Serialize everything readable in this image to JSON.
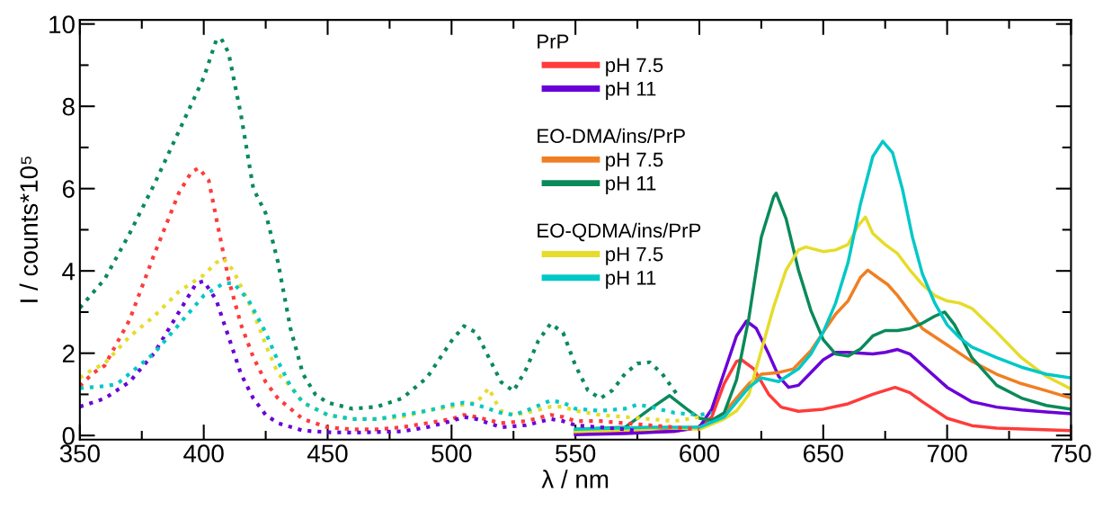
{
  "chart_data": {
    "type": "line",
    "xlabel": "λ / nm",
    "ylabel": "I / counts*10⁵",
    "xlim": [
      350,
      750
    ],
    "ylim": [
      -0.1,
      10.1
    ],
    "xticks": [
      350,
      {
        "value": 375,
        "label": null
      },
      400,
      {
        "value": 425,
        "label": null
      },
      450,
      {
        "value": 475,
        "label": null
      },
      500,
      {
        "value": 525,
        "label": null
      },
      550,
      {
        "value": 575,
        "label": null
      },
      600,
      {
        "value": 625,
        "label": null
      },
      650,
      {
        "value": 675,
        "label": null
      },
      700,
      {
        "value": 725,
        "label": null
      },
      750
    ],
    "yticks": [
      0,
      {
        "value": 1,
        "label": null
      },
      2,
      {
        "value": 3,
        "label": null
      },
      4,
      {
        "value": 5,
        "label": null
      },
      6,
      {
        "value": 7,
        "label": null
      },
      8,
      {
        "value": 9,
        "label": null
      },
      10
    ],
    "grid": false,
    "legend": "top",
    "marker": "none",
    "annotations": [
      "PrP",
      "EO-DMA/ins/PrP",
      "EO-QDMA/ins/PrP"
    ],
    "series": [
      {
        "name": "pH 7.5",
        "color": "#ff3b3b",
        "line_style": "solid",
        "x": [
          550,
          590,
          600,
          605,
          610,
          615,
          617,
          622,
          628,
          633,
          640,
          650,
          660,
          670,
          679,
          685,
          690,
          700,
          710,
          720,
          750
        ],
        "values": [
          0.05,
          0.1,
          0.2,
          0.45,
          1.26,
          1.8,
          1.84,
          1.62,
          1.0,
          0.69,
          0.59,
          0.64,
          0.77,
          1.0,
          1.17,
          1.04,
          0.82,
          0.42,
          0.24,
          0.18,
          0.12
        ]
      },
      {
        "name": "pH 11",
        "color": "#6a00d8",
        "line_style": "solid",
        "x": [
          550,
          570,
          590,
          600,
          605,
          610,
          615,
          619,
          623,
          628,
          632,
          636,
          640,
          645,
          650,
          655,
          660,
          670,
          675,
          680,
          685,
          690,
          700,
          710,
          720,
          730,
          740,
          750
        ],
        "values": [
          0.02,
          0.05,
          0.1,
          0.2,
          0.64,
          1.53,
          2.42,
          2.78,
          2.6,
          1.98,
          1.44,
          1.17,
          1.22,
          1.53,
          1.84,
          2.02,
          2.02,
          1.98,
          2.02,
          2.09,
          1.98,
          1.71,
          1.17,
          0.82,
          0.69,
          0.62,
          0.57,
          0.53
        ]
      },
      {
        "name": "pH 7.5",
        "color": "#f07f22",
        "line_style": "solid",
        "x": [
          550,
          600,
          605,
          610,
          615,
          620,
          625,
          632,
          638,
          645,
          650,
          655,
          660,
          665,
          668,
          672,
          676,
          680,
          690,
          700,
          710,
          720,
          730,
          740,
          750
        ],
        "values": [
          0.1,
          0.2,
          0.3,
          0.55,
          0.91,
          1.26,
          1.49,
          1.53,
          1.62,
          2.06,
          2.51,
          2.95,
          3.27,
          3.84,
          4.02,
          3.84,
          3.67,
          3.4,
          2.6,
          2.2,
          1.8,
          1.49,
          1.26,
          1.09,
          0.91
        ]
      },
      {
        "name": "pH 11",
        "color": "#0a8a5a",
        "line_style": "solid",
        "x": [
          550,
          570,
          580,
          588,
          595,
          600,
          605,
          610,
          615,
          620,
          625,
          630,
          631,
          635,
          640,
          645,
          650,
          655,
          660,
          665,
          670,
          675,
          680,
          685,
          690,
          695,
          699,
          703,
          710,
          720,
          730,
          740,
          750
        ],
        "values": [
          0.15,
          0.2,
          0.64,
          0.97,
          0.64,
          0.42,
          0.37,
          0.55,
          1.35,
          2.86,
          4.82,
          5.8,
          5.89,
          5.27,
          4.02,
          3.04,
          2.33,
          1.98,
          1.93,
          2.1,
          2.42,
          2.55,
          2.55,
          2.6,
          2.73,
          2.9,
          3.0,
          2.69,
          1.89,
          1.22,
          0.91,
          0.73,
          0.64
        ]
      },
      {
        "name": "pH 7.5",
        "color": "#e6dc2a",
        "line_style": "solid",
        "x": [
          550,
          580,
          585,
          600,
          610,
          615,
          620,
          625,
          630,
          635,
          640,
          643,
          650,
          655,
          660,
          664,
          667,
          670,
          675,
          680,
          685,
          690,
          695,
          700,
          705,
          710,
          720,
          730,
          740,
          750
        ],
        "values": [
          0.1,
          0.15,
          0.2,
          0.15,
          0.4,
          0.6,
          1.0,
          2.06,
          3.13,
          4.02,
          4.51,
          4.58,
          4.47,
          4.51,
          4.64,
          5.09,
          5.31,
          4.91,
          4.64,
          4.42,
          4.02,
          3.67,
          3.4,
          3.27,
          3.22,
          3.09,
          2.51,
          1.89,
          1.44,
          1.13
        ]
      },
      {
        "name": "pH 11",
        "color": "#00c8c8",
        "line_style": "solid",
        "x": [
          550,
          580,
          600,
          610,
          620,
          625,
          632,
          640,
          645,
          650,
          655,
          660,
          665,
          670,
          674,
          678,
          682,
          686,
          690,
          695,
          700,
          705,
          710,
          720,
          730,
          740,
          750
        ],
        "values": [
          0.15,
          0.2,
          0.2,
          0.45,
          1.17,
          1.4,
          1.31,
          1.62,
          1.98,
          2.51,
          3.22,
          4.2,
          5.62,
          6.78,
          7.15,
          6.87,
          5.98,
          4.82,
          3.93,
          3.22,
          2.69,
          2.38,
          2.15,
          1.89,
          1.66,
          1.49,
          1.4
        ]
      },
      {
        "color": "#0a8a5a",
        "line_style": "dotted",
        "x": [
          350,
          360,
          370,
          380,
          390,
          400,
          405,
          407,
          410,
          415,
          420,
          425,
          430,
          435,
          440,
          445,
          450,
          460,
          470,
          480,
          490,
          500,
          505,
          510,
          515,
          520,
          525,
          530,
          535,
          540,
          545,
          550,
          555,
          560,
          565,
          570,
          575,
          580,
          585,
          591
        ],
        "values": [
          3.1,
          3.8,
          4.9,
          6.1,
          7.4,
          8.7,
          9.6,
          9.65,
          9.3,
          7.8,
          6.0,
          5.4,
          4.2,
          2.6,
          1.5,
          1.0,
          0.8,
          0.65,
          0.7,
          0.9,
          1.4,
          2.3,
          2.66,
          2.5,
          1.9,
          1.3,
          1.08,
          1.6,
          2.3,
          2.72,
          2.5,
          1.7,
          1.1,
          0.9,
          1.1,
          1.5,
          1.75,
          1.78,
          1.5,
          1.0
        ]
      },
      {
        "color": "#ff3b3b",
        "line_style": "dotted",
        "x": [
          350,
          355,
          360,
          370,
          380,
          390,
          395,
          398,
          402,
          405,
          410,
          415,
          420,
          425,
          430,
          440,
          450,
          460,
          470,
          480,
          490,
          500,
          505,
          510,
          520,
          530,
          540,
          545,
          550,
          560,
          570,
          580,
          590,
          600
        ],
        "values": [
          1.2,
          1.5,
          1.7,
          2.8,
          4.4,
          5.9,
          6.4,
          6.5,
          6.2,
          5.3,
          3.8,
          2.7,
          1.9,
          1.3,
          0.9,
          0.4,
          0.2,
          0.15,
          0.15,
          0.2,
          0.3,
          0.4,
          0.5,
          0.45,
          0.3,
          0.35,
          0.5,
          0.45,
          0.35,
          0.35,
          0.3,
          0.25,
          0.2,
          0.15
        ]
      },
      {
        "color": "#6a00d8",
        "line_style": "dotted",
        "x": [
          350,
          360,
          370,
          380,
          390,
          397,
          400,
          405,
          410,
          415,
          420,
          425,
          430,
          440,
          450,
          460,
          480,
          490,
          500,
          505,
          510,
          520,
          530,
          540,
          545,
          550,
          560,
          570,
          576
        ],
        "values": [
          0.7,
          0.9,
          1.3,
          2.0,
          3.0,
          3.7,
          3.75,
          3.3,
          2.4,
          1.5,
          0.9,
          0.5,
          0.3,
          0.12,
          0.08,
          0.07,
          0.1,
          0.2,
          0.35,
          0.45,
          0.4,
          0.2,
          0.25,
          0.4,
          0.35,
          0.25,
          0.2,
          0.15,
          0.1
        ]
      },
      {
        "color": "#e6dc2a",
        "line_style": "dotted",
        "x": [
          350,
          355,
          360,
          370,
          380,
          390,
          400,
          405,
          408,
          412,
          416,
          420,
          425,
          430,
          435,
          440,
          450,
          460,
          470,
          480,
          490,
          500,
          505,
          510,
          513,
          515,
          518,
          520,
          525,
          530,
          540,
          545,
          550,
          560,
          570,
          580,
          590,
          600
        ],
        "values": [
          1.4,
          1.6,
          1.75,
          2.4,
          2.9,
          3.5,
          3.9,
          4.2,
          4.3,
          4.0,
          3.5,
          3.0,
          2.2,
          1.5,
          1.2,
          0.8,
          0.5,
          0.4,
          0.4,
          0.45,
          0.6,
          0.7,
          0.75,
          0.8,
          1.0,
          1.15,
          0.8,
          0.6,
          0.5,
          0.55,
          0.7,
          0.7,
          0.6,
          0.5,
          0.45,
          0.4,
          0.35,
          0.45
        ]
      },
      {
        "color": "#00c8c8",
        "line_style": "dotted",
        "x": [
          350,
          360,
          365,
          370,
          380,
          390,
          400,
          408,
          412,
          418,
          425,
          430,
          435,
          440,
          450,
          460,
          470,
          480,
          490,
          500,
          505,
          510,
          520,
          525,
          530,
          540,
          545,
          550,
          560,
          570,
          575,
          580,
          590,
          600,
          605
        ],
        "values": [
          1.15,
          1.2,
          1.25,
          1.5,
          2.0,
          2.7,
          3.4,
          3.7,
          3.7,
          3.3,
          2.5,
          1.8,
          1.2,
          0.8,
          0.5,
          0.4,
          0.4,
          0.5,
          0.6,
          0.75,
          0.8,
          0.75,
          0.55,
          0.5,
          0.6,
          0.85,
          0.8,
          0.65,
          0.6,
          0.65,
          0.75,
          0.7,
          0.55,
          0.5,
          0.55
        ]
      }
    ]
  }
}
